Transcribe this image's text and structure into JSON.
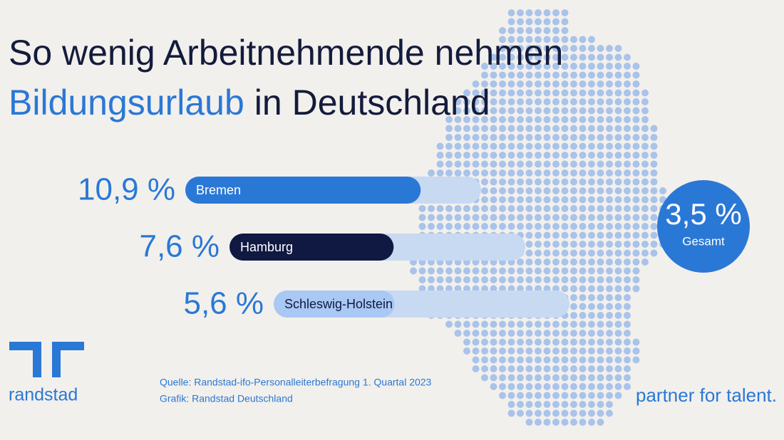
{
  "chart_data": {
    "type": "bar",
    "title": {
      "line1": "So wenig Arbeitnehmende nehmen",
      "highlight": "Bildungsurlaub",
      "rest": "in Deutschland"
    },
    "categories": [
      "Bremen",
      "Hamburg",
      "Schleswig-Holstein"
    ],
    "values": [
      10.9,
      7.6,
      5.6
    ],
    "value_labels": [
      "10,9 %",
      "7,6 %",
      "5,6 %"
    ],
    "colors": [
      "#2a78d6",
      "#0f1941",
      "#a9c8f3"
    ],
    "label_colors": [
      "#ffffff",
      "#ffffff",
      "#0f1941"
    ],
    "total": {
      "value": 3.5,
      "value_label": "3,5 %",
      "label": "Gesamt"
    },
    "source": [
      "Quelle: Randstad-ifo-Personalleiterbefragung 1. Quartal 2023",
      "Grafik: Randstad Deutschland"
    ],
    "brand": "randstad",
    "tagline": "partner for talent."
  }
}
